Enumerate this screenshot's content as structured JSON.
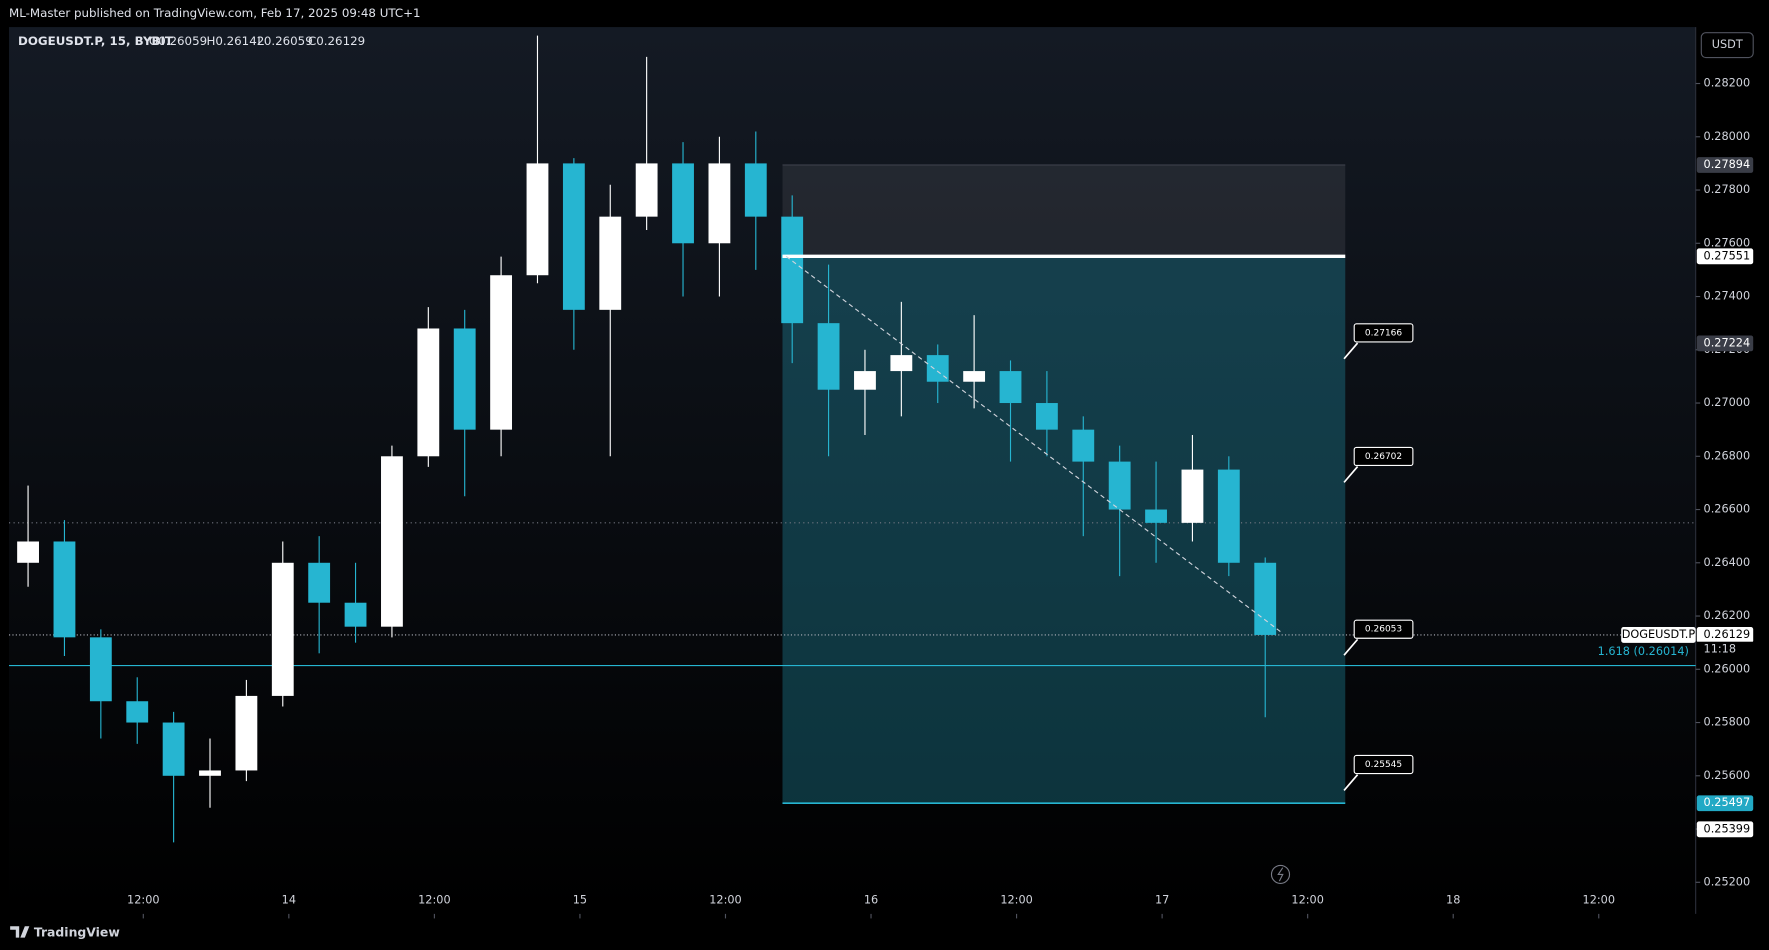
{
  "header": {
    "published": "ML-Master published on TradingView.com, Feb 17, 2025 09:48 UTC+1",
    "symbol": "DOGEUSDT.P, 15, BYBIT",
    "ohlc": [
      "O0.26059",
      "H0.26142",
      "L0.26059",
      "C0.26129"
    ]
  },
  "currency_button": "USDT",
  "logo": "TradingView",
  "chart_data": {
    "type": "candlestick",
    "x": [
      2.5,
      5.5,
      8.5,
      11.5,
      14.5,
      17.5,
      20.5,
      23.5,
      26.5,
      29.5,
      32.5,
      35.5,
      38.5,
      41.5,
      44.5,
      47.5,
      50.5,
      53.5,
      56.5,
      59.5,
      62.5,
      65.5,
      68.5,
      71.5,
      74.5,
      77.5,
      80.5,
      83.5,
      86.5,
      89.5,
      92.5,
      95.5,
      98.5,
      101.5,
      104.5
    ],
    "open": [
      0.264,
      0.2648,
      0.2612,
      0.2588,
      0.258,
      0.256,
      0.2562,
      0.259,
      0.264,
      0.2625,
      0.2616,
      0.268,
      0.2728,
      0.269,
      0.2748,
      0.279,
      0.2735,
      0.277,
      0.279,
      0.276,
      0.279,
      0.277,
      0.273,
      0.2705,
      0.2712,
      0.2718,
      0.2708,
      0.2712,
      0.27,
      0.269,
      0.2678,
      0.266,
      0.2655,
      0.2675,
      0.264
    ],
    "high": [
      0.2669,
      0.2656,
      0.2615,
      0.2597,
      0.2584,
      0.2574,
      0.2596,
      0.2648,
      0.265,
      0.264,
      0.2684,
      0.2736,
      0.2735,
      0.2755,
      0.2838,
      0.2792,
      0.2782,
      0.283,
      0.2798,
      0.28,
      0.2802,
      0.2778,
      0.2752,
      0.272,
      0.2738,
      0.2722,
      0.2733,
      0.2716,
      0.2712,
      0.2695,
      0.2684,
      0.2678,
      0.2688,
      0.268,
      0.2642
    ],
    "low": [
      0.2631,
      0.2605,
      0.2574,
      0.2572,
      0.2535,
      0.2548,
      0.2558,
      0.2586,
      0.2606,
      0.261,
      0.2612,
      0.2676,
      0.2665,
      0.268,
      0.2745,
      0.272,
      0.268,
      0.2765,
      0.274,
      0.274,
      0.275,
      0.2715,
      0.268,
      0.2688,
      0.2695,
      0.27,
      0.2698,
      0.2678,
      0.268,
      0.265,
      0.2635,
      0.264,
      0.2648,
      0.2635,
      0.2582
    ],
    "close": [
      0.2648,
      0.2612,
      0.2588,
      0.258,
      0.256,
      0.2562,
      0.259,
      0.264,
      0.2625,
      0.2616,
      0.268,
      0.2728,
      0.269,
      0.2748,
      0.279,
      0.2735,
      0.277,
      0.279,
      0.276,
      0.279,
      0.277,
      0.273,
      0.2705,
      0.2712,
      0.2718,
      0.2708,
      0.2712,
      0.27,
      0.269,
      0.2678,
      0.266,
      0.2655,
      0.2675,
      0.264,
      0.26129
    ],
    "up_color": "#ffffff",
    "down_color": "#26b5d1",
    "xlim": [
      0.93,
      139.99
    ],
    "xticks": [
      {
        "value": 12,
        "label": "12:00"
      },
      {
        "value": 24,
        "label": "14"
      },
      {
        "value": 36,
        "label": "12:00"
      },
      {
        "value": 48,
        "label": "15"
      },
      {
        "value": 60,
        "label": "12:00"
      },
      {
        "value": 72,
        "label": "16"
      },
      {
        "value": 84,
        "label": "12:00"
      },
      {
        "value": 96,
        "label": "17"
      },
      {
        "value": 108,
        "label": "12:00"
      },
      {
        "value": 120,
        "label": "18"
      },
      {
        "value": 132,
        "label": "12:00"
      }
    ],
    "ylim": [
      0.25183,
      0.28412
    ],
    "yticks": [
      {
        "value": 0.252,
        "label": "0.25200"
      },
      {
        "value": 0.254,
        "label": "0.25400"
      },
      {
        "value": 0.256,
        "label": "0.25600"
      },
      {
        "value": 0.258,
        "label": "0.25800"
      },
      {
        "value": 0.26,
        "label": "0.26000"
      },
      {
        "value": 0.262,
        "label": "0.26200"
      },
      {
        "value": 0.264,
        "label": "0.26400"
      },
      {
        "value": 0.266,
        "label": "0.26600"
      },
      {
        "value": 0.268,
        "label": "0.26800"
      },
      {
        "value": 0.27,
        "label": "0.27000"
      },
      {
        "value": 0.272,
        "label": "0.27200"
      },
      {
        "value": 0.274,
        "label": "0.27400"
      },
      {
        "value": 0.276,
        "label": "0.27600"
      },
      {
        "value": 0.278,
        "label": "0.27800"
      },
      {
        "value": 0.28,
        "label": "0.28000"
      },
      {
        "value": 0.282,
        "label": "0.28200"
      }
    ],
    "position": {
      "x": [
        64.7,
        111.1
      ],
      "stop": 0.27894,
      "entry": 0.27551,
      "target": 0.25497
    },
    "trendline": {
      "x": [
        65,
        105.8
      ],
      "y": [
        0.27551,
        0.2614
      ]
    },
    "dotted_level": 0.2655,
    "fib": {
      "value": 0.26014,
      "label": "1.618 (0.26014)",
      "color": "#26b5d1"
    },
    "last_price": {
      "value": 0.26129,
      "symbol": "DOGEUSDT.P",
      "countdown": "11:18"
    },
    "price_tags": [
      {
        "value": 0.27894,
        "label": "0.27894",
        "color": "#3a3d47",
        "text_color": "#ffffff"
      },
      {
        "value": 0.27551,
        "label": "0.27551",
        "color": "#ffffff",
        "text_color": "#000000"
      },
      {
        "value": 0.27224,
        "label": "0.27224",
        "color": "#3a3d47",
        "text_color": "#ffffff"
      },
      {
        "value": 0.26129,
        "label": "0.26129",
        "color": "#ffffff",
        "text_color": "#000000"
      },
      {
        "value": 0.25497,
        "label": "0.25497",
        "color": "#22a9c5",
        "text_color": "#ffffff"
      },
      {
        "value": 0.25399,
        "label": "0.25399",
        "color": "#ffffff",
        "text_color": "#000000"
      }
    ],
    "callouts": {
      "x": 111,
      "levels": [
        {
          "value": 0.27166,
          "label": "0.27166"
        },
        {
          "value": 0.26702,
          "label": "0.26702"
        },
        {
          "value": 0.26053,
          "label": "0.26053"
        },
        {
          "value": 0.25545,
          "label": "0.25545"
        }
      ]
    }
  }
}
